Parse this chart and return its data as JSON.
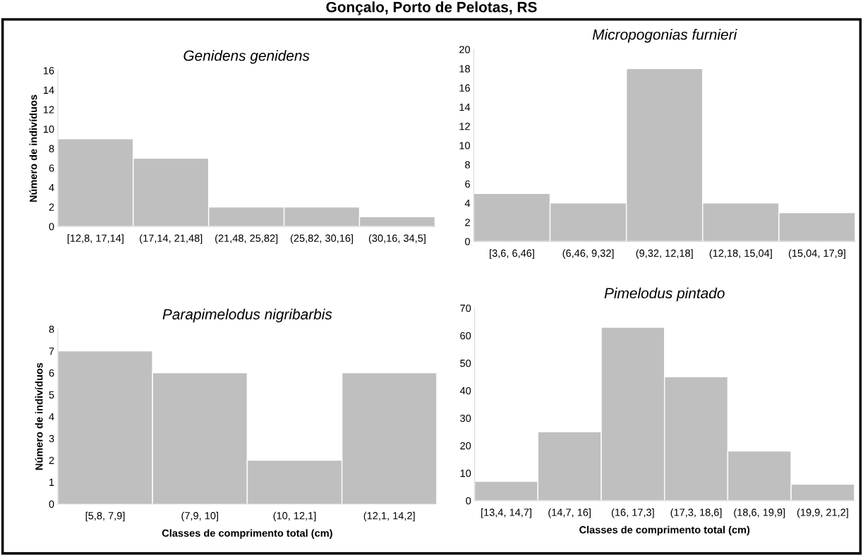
{
  "chart_data": [
    {
      "type": "bar",
      "title": "Genidens genidens",
      "ylabel": "Número de indivíduos",
      "annotations": [
        "Gonçalo, Porto de Pelotas, RS"
      ],
      "categories": [
        "[12,8, 17,14]",
        "(17,14, 21,48]",
        "(21,48, 25,82]",
        "(25,82, 30,16]",
        "(30,16, 34,5]"
      ],
      "values": [
        9,
        7,
        2,
        2,
        1
      ],
      "color": "#bfbfbf",
      "ylim": [
        0,
        16
      ],
      "yticks": [
        0,
        2,
        4,
        6,
        8,
        10,
        12,
        14,
        16
      ],
      "grid": false,
      "legend": false
    },
    {
      "type": "bar",
      "title": "Micropogonias furnieri",
      "categories": [
        "[3,6, 6,46]",
        "(6,46, 9,32]",
        "(9,32, 12,18]",
        "(12,18, 15,04]",
        "(15,04, 17,9]"
      ],
      "values": [
        5,
        4,
        18,
        4,
        3
      ],
      "color": "#bfbfbf",
      "ylim": [
        0,
        20
      ],
      "yticks": [
        0,
        2,
        4,
        6,
        8,
        10,
        12,
        14,
        16,
        18,
        20
      ],
      "grid": false,
      "legend": false
    },
    {
      "type": "bar",
      "title": "Parapimelodus nigribarbis",
      "ylabel": "Número de indivíduos",
      "xlabel": "Classes de comprimento total (cm)",
      "categories": [
        "[5,8, 7,9]",
        "(7,9, 10]",
        "(10, 12,1]",
        "(12,1, 14,2]"
      ],
      "values": [
        7,
        6,
        2,
        6
      ],
      "color": "#bfbfbf",
      "ylim": [
        0,
        8
      ],
      "yticks": [
        0,
        1,
        2,
        3,
        4,
        5,
        6,
        7,
        8
      ],
      "grid": false,
      "legend": false
    },
    {
      "type": "bar",
      "title": "Pimelodus pintado",
      "xlabel": "Classes de comprimento total (cm)",
      "categories": [
        "[13,4, 14,7]",
        "(14,7, 16]",
        "(16, 17,3]",
        "(17,3, 18,6]",
        "(18,6, 19,9]",
        "(19,9, 21,2]"
      ],
      "values": [
        7,
        25,
        63,
        45,
        18,
        6
      ],
      "color": "#bfbfbf",
      "ylim": [
        0,
        70
      ],
      "yticks": [
        0,
        10,
        20,
        30,
        40,
        50,
        60,
        70
      ],
      "grid": false,
      "legend": false
    }
  ]
}
